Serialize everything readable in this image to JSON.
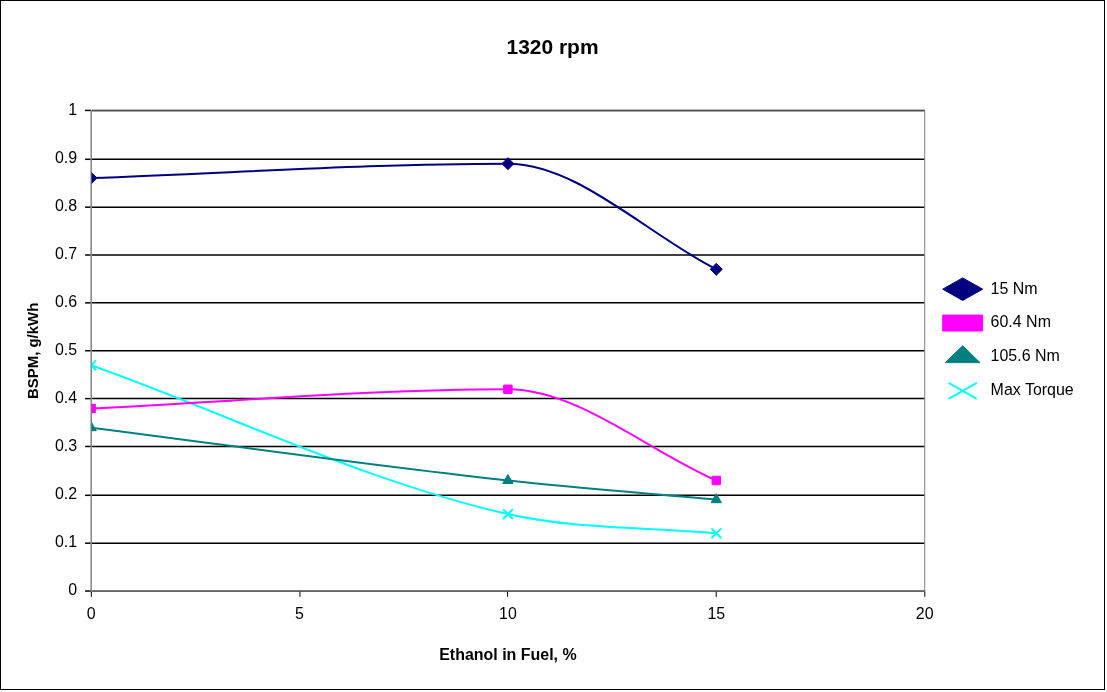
{
  "chart_data": {
    "type": "line",
    "title": "1320 rpm",
    "xlabel": "Ethanol in Fuel, %",
    "ylabel": "BSPM, g/kWh",
    "x": [
      0,
      10,
      15
    ],
    "xlim": [
      0,
      20
    ],
    "xticks": [
      0,
      5,
      10,
      15,
      20
    ],
    "ylim": [
      0,
      1
    ],
    "yticks": [
      0,
      0.1,
      0.2,
      0.3,
      0.4,
      0.5,
      0.6,
      0.7,
      0.8,
      0.9,
      1
    ],
    "grid": "y",
    "legend": "right",
    "line_style": "solid",
    "series": [
      {
        "name": "15 Nm",
        "color": "#000080",
        "marker": "diamond",
        "values": [
          0.86,
          0.89,
          0.67
        ]
      },
      {
        "name": "60.4 Nm",
        "color": "#ff00ff",
        "marker": "square",
        "values": [
          0.38,
          0.42,
          0.23
        ]
      },
      {
        "name": "105.6 Nm",
        "color": "#008080",
        "marker": "triangle",
        "values": [
          0.34,
          0.23,
          0.19
        ]
      },
      {
        "name": "Max Torque",
        "color": "#00ffff",
        "marker": "cross",
        "values": [
          0.47,
          0.16,
          0.12
        ]
      }
    ]
  }
}
